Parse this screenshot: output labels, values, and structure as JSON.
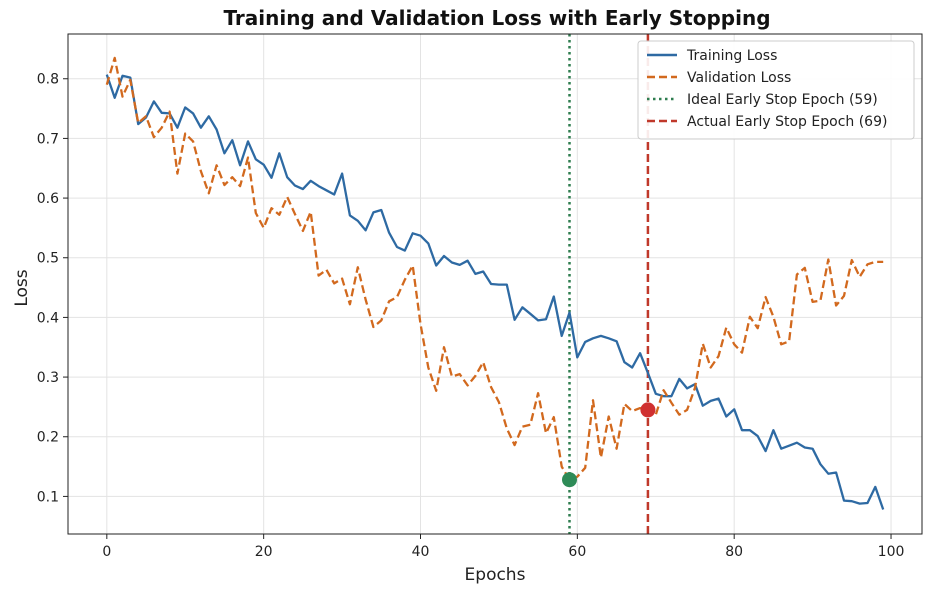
{
  "chart_data": {
    "type": "line",
    "title": "Training and Validation Loss with Early Stopping",
    "xlabel": "Epochs",
    "ylabel": "Loss",
    "xlim": [
      -4.95,
      103.95
    ],
    "ylim": [
      0.037,
      0.875
    ],
    "xticks": [
      0,
      20,
      40,
      60,
      80,
      100
    ],
    "yticks": [
      0.1,
      0.2,
      0.3,
      0.4,
      0.5,
      0.6,
      0.7,
      0.8
    ],
    "grid": true,
    "legend_position": "top-right",
    "x": [
      0,
      1,
      2,
      3,
      4,
      5,
      6,
      7,
      8,
      9,
      10,
      11,
      12,
      13,
      14,
      15,
      16,
      17,
      18,
      19,
      20,
      21,
      22,
      23,
      24,
      25,
      26,
      27,
      28,
      29,
      30,
      31,
      32,
      33,
      34,
      35,
      36,
      37,
      38,
      39,
      40,
      41,
      42,
      43,
      44,
      45,
      46,
      47,
      48,
      49,
      50,
      51,
      52,
      53,
      54,
      55,
      56,
      57,
      58,
      59,
      60,
      61,
      62,
      63,
      64,
      65,
      66,
      67,
      68,
      69,
      70,
      71,
      72,
      73,
      74,
      75,
      76,
      77,
      78,
      79,
      80,
      81,
      82,
      83,
      84,
      85,
      86,
      87,
      88,
      89,
      90,
      91,
      92,
      93,
      94,
      95,
      96,
      97,
      98,
      99
    ],
    "series": [
      {
        "name": "Training Loss",
        "color": "#2e6aa3",
        "style": "solid",
        "values": [
          0.807,
          0.768,
          0.805,
          0.802,
          0.724,
          0.735,
          0.762,
          0.743,
          0.742,
          0.718,
          0.752,
          0.742,
          0.718,
          0.737,
          0.715,
          0.675,
          0.697,
          0.655,
          0.695,
          0.665,
          0.656,
          0.634,
          0.675,
          0.635,
          0.621,
          0.615,
          0.629,
          0.62,
          0.613,
          0.606,
          0.641,
          0.571,
          0.562,
          0.546,
          0.576,
          0.58,
          0.542,
          0.518,
          0.512,
          0.541,
          0.537,
          0.524,
          0.487,
          0.503,
          0.492,
          0.488,
          0.495,
          0.473,
          0.477,
          0.456,
          0.455,
          0.455,
          0.396,
          0.417,
          0.406,
          0.395,
          0.397,
          0.435,
          0.369,
          0.408,
          0.333,
          0.359,
          0.365,
          0.369,
          0.365,
          0.36,
          0.325,
          0.316,
          0.34,
          0.307,
          0.272,
          0.268,
          0.268,
          0.297,
          0.281,
          0.288,
          0.252,
          0.26,
          0.264,
          0.234,
          0.246,
          0.211,
          0.211,
          0.201,
          0.176,
          0.211,
          0.18,
          0.185,
          0.19,
          0.182,
          0.18,
          0.154,
          0.138,
          0.14,
          0.093,
          0.092,
          0.088,
          0.089,
          0.116,
          0.078
        ]
      },
      {
        "name": "Validation Loss",
        "color": "#d2691e",
        "style": "dashed",
        "values": [
          0.79,
          0.835,
          0.77,
          0.798,
          0.726,
          0.737,
          0.702,
          0.718,
          0.745,
          0.641,
          0.708,
          0.695,
          0.645,
          0.608,
          0.655,
          0.622,
          0.635,
          0.62,
          0.668,
          0.575,
          0.55,
          0.583,
          0.572,
          0.602,
          0.573,
          0.545,
          0.577,
          0.47,
          0.48,
          0.457,
          0.465,
          0.422,
          0.484,
          0.43,
          0.384,
          0.395,
          0.427,
          0.434,
          0.463,
          0.487,
          0.389,
          0.316,
          0.277,
          0.35,
          0.301,
          0.305,
          0.286,
          0.302,
          0.325,
          0.283,
          0.258,
          0.214,
          0.186,
          0.217,
          0.22,
          0.273,
          0.206,
          0.233,
          0.15,
          0.128,
          0.133,
          0.148,
          0.261,
          0.165,
          0.234,
          0.18,
          0.255,
          0.243,
          0.248,
          0.245,
          0.237,
          0.278,
          0.257,
          0.237,
          0.245,
          0.282,
          0.356,
          0.316,
          0.335,
          0.383,
          0.355,
          0.341,
          0.401,
          0.382,
          0.434,
          0.401,
          0.355,
          0.36,
          0.472,
          0.483,
          0.426,
          0.428,
          0.497,
          0.42,
          0.436,
          0.496,
          0.468,
          0.489,
          0.493,
          0.493
        ]
      }
    ],
    "vlines": [
      {
        "name": "Ideal Early Stop Epoch (59)",
        "x": 59,
        "color": "#2e7d4f",
        "style": "dotted"
      },
      {
        "name": "Actual Early Stop Epoch (69)",
        "x": 69,
        "color": "#c0392b",
        "style": "dashed"
      }
    ],
    "markers": [
      {
        "x": 59,
        "y": 0.128,
        "color": "#2e8b57"
      },
      {
        "x": 69,
        "y": 0.245,
        "color": "#d03030"
      }
    ]
  }
}
